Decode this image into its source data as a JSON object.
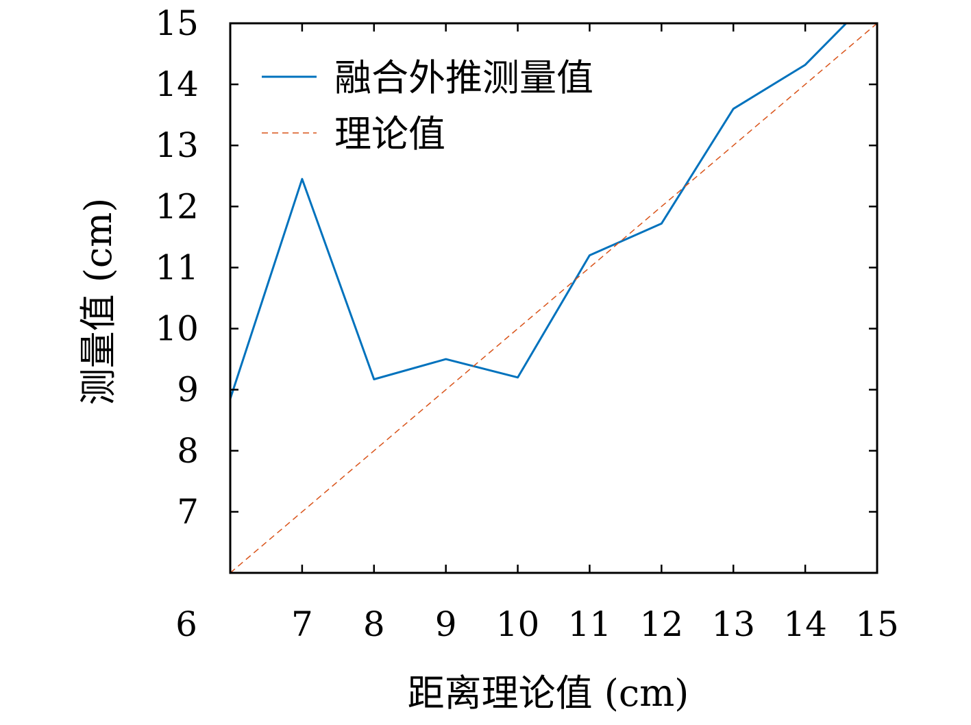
{
  "chart_data": {
    "type": "line",
    "xlabel": "距离理论值 (cm)",
    "ylabel": "测量值 (cm)",
    "xlim": [
      6,
      15
    ],
    "ylim": [
      6,
      15
    ],
    "xticks": [
      6,
      7,
      8,
      9,
      10,
      11,
      12,
      13,
      14,
      15
    ],
    "yticks": [
      7,
      8,
      9,
      10,
      11,
      12,
      13,
      14,
      15
    ],
    "legend_position": "top-left",
    "grid": false,
    "series": [
      {
        "name": "融合外推测量值",
        "style": "solid",
        "color": "#0072BD",
        "x": [
          6,
          7,
          8,
          9,
          10,
          11,
          12,
          13,
          14,
          14.57
        ],
        "y": [
          8.85,
          12.45,
          9.17,
          9.5,
          9.2,
          11.2,
          11.72,
          13.6,
          14.32,
          15.0
        ]
      },
      {
        "name": "理论值",
        "style": "dashed",
        "color": "#D95319",
        "x": [
          6,
          15
        ],
        "y": [
          6,
          15
        ]
      }
    ]
  }
}
